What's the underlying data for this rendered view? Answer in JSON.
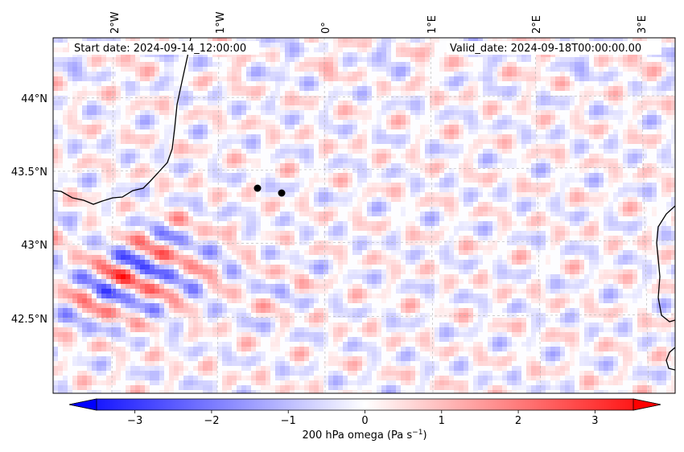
{
  "map": {
    "start_date": "Start date: 2024-09-14_12:00:00",
    "valid_date": "Valid_date: 2024-09-18T00:00:00.00",
    "lon_labels": [
      "2°W",
      "1°W",
      "0°",
      "1°E",
      "2°E",
      "3°E"
    ],
    "lat_labels": [
      "44°N",
      "43.5°N",
      "43°N",
      "42.5°N"
    ],
    "markers": [
      {
        "name": "point-marker-1",
        "lon": -0.65,
        "lat": 43.39
      },
      {
        "name": "point-marker-2",
        "lon": -0.4,
        "lat": 43.36
      }
    ]
  },
  "colorbar": {
    "label": "200 hPa omega (Pa s",
    "label_sup": "−1",
    "label_end": ")",
    "ticks": [
      "−3",
      "−2",
      "−1",
      "0",
      "1",
      "2",
      "3"
    ],
    "min": -3.5,
    "max": 3.5,
    "colors": {
      "low": "#0000ff",
      "mid": "#ffffff",
      "high": "#ff0000"
    }
  }
}
